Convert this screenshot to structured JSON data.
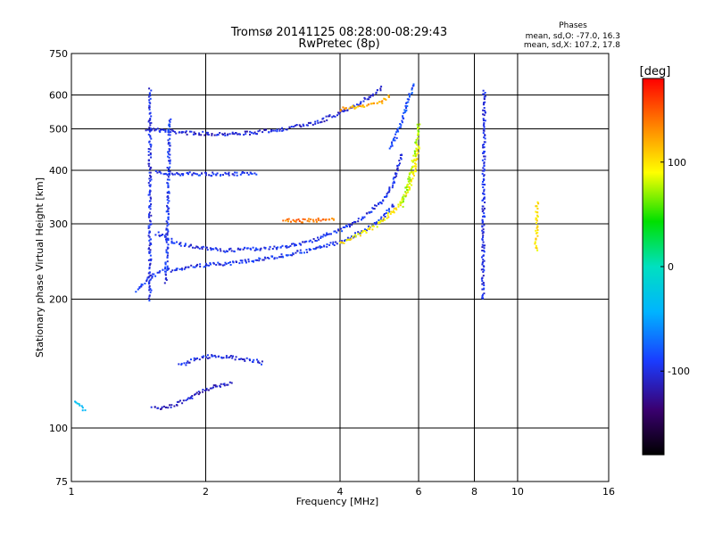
{
  "chart_data": {
    "type": "scatter",
    "title": "Tromsø 20141125 08:28:00-08:29:43",
    "subtitle": "RwPretec (8p)",
    "xlabel": "Frequency [MHz]",
    "ylabel": "Stationary phase Virtual Height [km]",
    "x_scale": "log",
    "y_scale": "log",
    "xlim": [
      1,
      16
    ],
    "ylim": [
      75,
      750
    ],
    "x_ticks": [
      1,
      2,
      4,
      6,
      8,
      10,
      16
    ],
    "x_tick_labels": [
      "1",
      "2",
      "4",
      "6",
      "8",
      "10",
      "16"
    ],
    "y_ticks": [
      75,
      100,
      200,
      300,
      400,
      500,
      600,
      750
    ],
    "y_tick_labels": [
      "75",
      "100",
      "200",
      "300",
      "400",
      "500",
      "600",
      "750"
    ],
    "grid": true,
    "stats_header": "Phases",
    "stats_lines": [
      "mean, sd,O: -77.0, 16.3",
      "mean, sd,X: 107.2, 17.8"
    ],
    "colorbar": {
      "label": "[deg]",
      "range": [
        -180,
        180
      ],
      "ticks": [
        100,
        0,
        -100
      ],
      "tick_labels": [
        "100",
        "0",
        "-100"
      ]
    },
    "traces": [
      {
        "kind": "curve",
        "x": [
          1.48,
          1.6,
          1.8,
          2.0,
          2.3,
          2.6,
          3.0,
          3.5,
          4.0,
          4.5,
          5.0
        ],
        "y": [
          500,
          495,
          490,
          487,
          487,
          490,
          500,
          515,
          545,
          580,
          625
        ],
        "phase": -105
      },
      {
        "kind": "curve",
        "x": [
          1.55,
          1.7,
          2.0,
          2.3,
          2.6
        ],
        "y": [
          395,
          393,
          392,
          392,
          393
        ],
        "phase": -95
      },
      {
        "kind": "curve",
        "x": [
          1.4,
          1.5,
          1.6,
          1.8,
          2.0,
          2.3,
          2.6,
          3.0,
          3.5,
          4.0,
          4.5,
          5.0,
          5.3
        ],
        "y": [
          210,
          225,
          232,
          237,
          240,
          243,
          247,
          253,
          262,
          272,
          288,
          310,
          335
        ],
        "phase": -95
      },
      {
        "kind": "curve",
        "x": [
          1.55,
          1.7,
          1.9,
          2.2,
          2.6,
          3.0,
          3.5,
          4.0,
          4.5,
          5.0,
          5.3,
          5.5
        ],
        "y": [
          285,
          272,
          264,
          260,
          262,
          265,
          275,
          290,
          310,
          340,
          380,
          440
        ],
        "phase": -98
      },
      {
        "kind": "curve",
        "x": [
          4.0,
          4.5,
          5.0,
          5.4,
          5.7,
          5.9,
          6.0
        ],
        "y": [
          270,
          285,
          305,
          330,
          360,
          400,
          460
        ],
        "phase": 95
      },
      {
        "kind": "curve",
        "x": [
          5.5,
          5.7,
          5.9,
          6.0
        ],
        "y": [
          330,
          380,
          440,
          520
        ],
        "phase": 75
      },
      {
        "kind": "curve",
        "x": [
          4.0,
          4.5,
          5.0,
          5.2
        ],
        "y": [
          555,
          565,
          580,
          600
        ],
        "phase": 120
      },
      {
        "kind": "curve",
        "x": [
          5.2,
          5.5,
          5.7,
          5.85
        ],
        "y": [
          450,
          520,
          590,
          640
        ],
        "phase": -85
      },
      {
        "kind": "curve",
        "x": [
          3.0,
          3.3,
          3.6,
          3.9
        ],
        "y": [
          305,
          305,
          306,
          308
        ],
        "phase": 140
      },
      {
        "kind": "curve",
        "x": [
          1.5,
          1.5,
          1.5
        ],
        "y": [
          200,
          400,
          620
        ],
        "phase": -100
      },
      {
        "kind": "curve",
        "x": [
          1.63,
          1.65,
          1.66
        ],
        "y": [
          220,
          380,
          530
        ],
        "phase": -95
      },
      {
        "kind": "curve",
        "x": [
          1.52,
          1.7,
          1.8,
          1.9,
          2.1,
          2.3
        ],
        "y": [
          111,
          113,
          116,
          120,
          125,
          128
        ],
        "phase": -110
      },
      {
        "kind": "curve",
        "x": [
          1.75,
          1.9,
          2.1,
          2.3,
          2.5,
          2.7
        ],
        "y": [
          140,
          145,
          148,
          146,
          144,
          142
        ],
        "phase": -100
      },
      {
        "kind": "curve",
        "x": [
          1.02,
          1.05,
          1.08
        ],
        "y": [
          115,
          112,
          110
        ],
        "phase": -40
      },
      {
        "kind": "curve",
        "x": [
          8.35,
          8.38,
          8.42
        ],
        "y": [
          200,
          270,
          620
        ],
        "phase": -100
      },
      {
        "kind": "curve",
        "x": [
          11.0,
          11.05
        ],
        "y": [
          260,
          340
        ],
        "phase": 100
      }
    ]
  }
}
